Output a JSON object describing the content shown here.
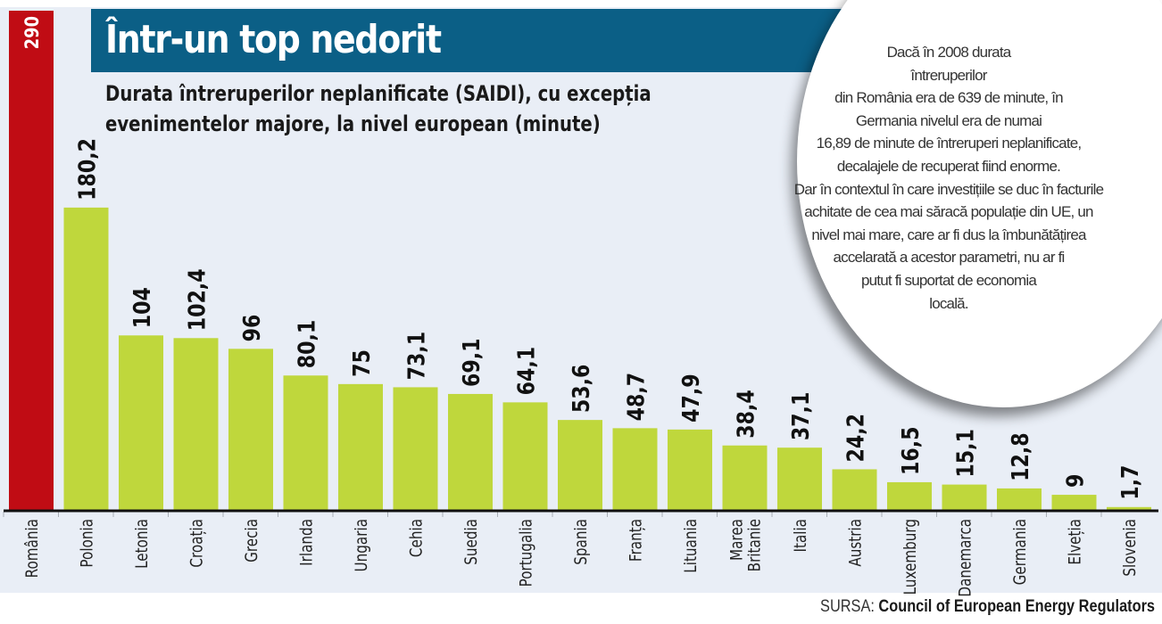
{
  "title": "Într-un top nedorit",
  "subtitle_lines": [
    "Durata întreruperilor neplanificate (SAIDI), cu excepția",
    "evenimentelor majore, la nivel european (minute)"
  ],
  "note_lines": [
    "Dacă în 2008 durata",
    "întreruperilor",
    "din România era de 639 de minute, în",
    "Germania nivelul era de numai",
    "16,89 de minute de întreruperi neplanificate,",
    "decalajele de recuperat fiind enorme.",
    "Dar în contextul în care investițiile se duc în facturile",
    "achitate de cea mai săracă populație din UE, un",
    "nivel mai mare, care ar fi dus la îmbunătățirea",
    "accelarată a acestor parametri, nu ar fi",
    "putut fi suportat de economia",
    "locală."
  ],
  "source": {
    "label": "SURSA:",
    "value": "Council of European Energy Regulators"
  },
  "colors": {
    "highlight": "#c00c14",
    "bar": "#bfd73c",
    "title_bg": "#0b5f86",
    "panel_bg": "#e9eef6"
  },
  "chart_data": {
    "type": "bar",
    "title": "Într-un top nedorit",
    "subtitle": "Durata întreruperilor neplanificate (SAIDI), cu excepția evenimentelor majore, la nivel european (minute)",
    "xlabel": "",
    "ylabel": "minute",
    "grid": false,
    "categories": [
      "România",
      "Polonia",
      "Letonia",
      "Croația",
      "Grecia",
      "Irlanda",
      "Ungaria",
      "Cehia",
      "Suedia",
      "Portugalia",
      "Spania",
      "Franța",
      "Lituania",
      "Marea Britanie",
      "Italia",
      "Austria",
      "Luxemburg",
      "Danemarca",
      "Germania",
      "Elveția",
      "Slovenia"
    ],
    "values": [
      290,
      180.2,
      104,
      102.4,
      96,
      80.1,
      75,
      73.1,
      69.1,
      64.1,
      53.6,
      48.7,
      47.9,
      38.4,
      37.1,
      24.2,
      16.5,
      15.1,
      12.8,
      9,
      1.7
    ],
    "labels": [
      "290",
      "180,2",
      "104",
      "102,4",
      "96",
      "80,1",
      "75",
      "73,1",
      "69,1",
      "64,1",
      "53,6",
      "48,7",
      "47,9",
      "38,4",
      "37,1",
      "24,2",
      "16,5",
      "15,1",
      "12,8",
      "9",
      "1,7"
    ],
    "highlight_index": 0,
    "truncated": [
      true,
      false,
      false,
      false,
      false,
      false,
      false,
      false,
      false,
      false,
      false,
      false,
      false,
      false,
      false,
      false,
      false,
      false,
      false,
      false,
      false
    ]
  }
}
